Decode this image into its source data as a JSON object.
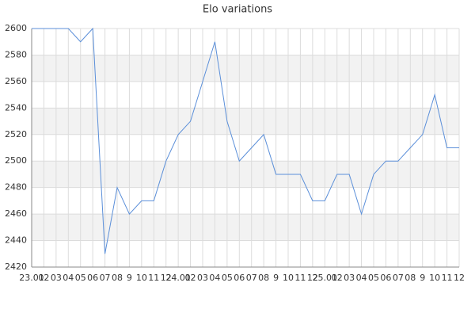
{
  "chart_data": {
    "type": "line",
    "title": "Elo variations",
    "categories": [
      "23.01",
      "02",
      "03",
      "04",
      "05",
      "06",
      "07",
      "08",
      "9",
      "10",
      "11",
      "12",
      "24.01",
      "02",
      "03",
      "04",
      "05",
      "06",
      "07",
      "08",
      "9",
      "10",
      "11",
      "12",
      "25.01",
      "02",
      "03",
      "04",
      "05",
      "06",
      "07",
      "08",
      "9",
      "10",
      "11",
      "12"
    ],
    "series": [
      {
        "name": "Elo",
        "color": "#5b8fd9",
        "values": [
          2600,
          2600,
          2600,
          2600,
          2590,
          2600,
          2430,
          2480,
          2460,
          2470,
          2470,
          2500,
          2520,
          2530,
          2560,
          2590,
          2530,
          2500,
          2510,
          2520,
          2490,
          2490,
          2490,
          2470,
          2470,
          2490,
          2490,
          2460,
          2490,
          2500,
          2500,
          2510,
          2520,
          2550,
          2510,
          2510
        ]
      }
    ],
    "ylim": [
      2420,
      2600
    ],
    "yticks": [
      2420,
      2440,
      2460,
      2480,
      2500,
      2520,
      2540,
      2560,
      2580,
      2600
    ],
    "grid": true
  }
}
